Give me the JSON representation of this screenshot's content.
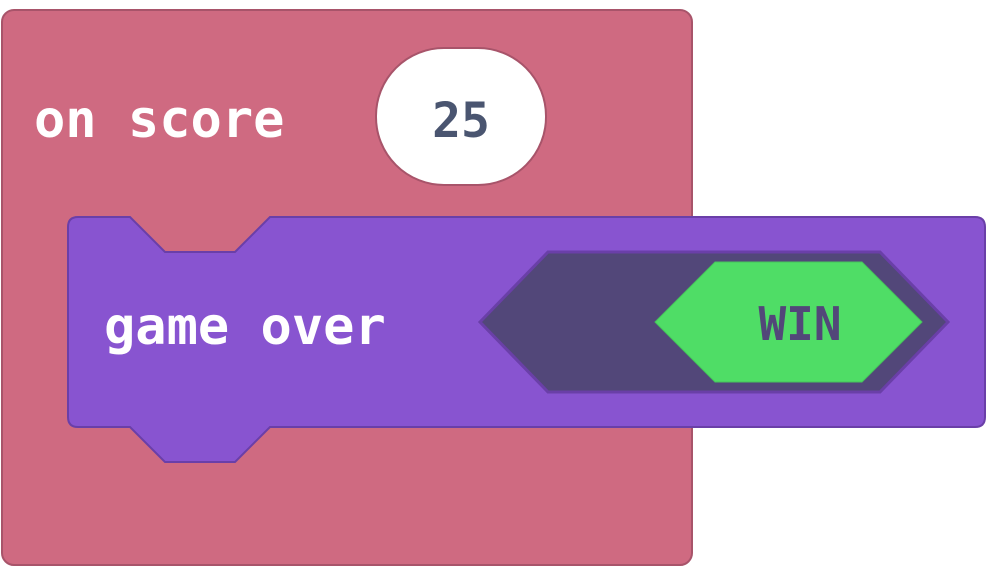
{
  "event_block": {
    "label": "on score",
    "value": "25",
    "color": "#cf6a81"
  },
  "statement_block": {
    "label": "game over",
    "color": "#8854d0",
    "argument_slot_color": "#524779",
    "argument": {
      "label": "WIN",
      "color": "#4fdd66"
    }
  }
}
